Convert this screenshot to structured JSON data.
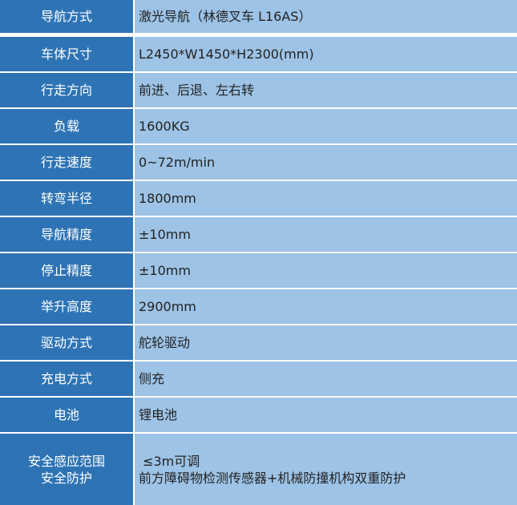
{
  "rows": [
    {
      "label": "导航方式",
      "value": "激光导航（林德叉车 L16AS）"
    },
    {
      "label": "车体尺寸",
      "value": "L2450*W1450*H2300(mm)"
    },
    {
      "label": "行走方向",
      "value": "前进、后退、左右转"
    },
    {
      "label": "负载",
      "value": "1600KG"
    },
    {
      "label": "行走速度",
      "value": "0~72m/min"
    },
    {
      "label": "转弯半径",
      "value": "1800mm"
    },
    {
      "label": "导航精度",
      "value": "±10mm"
    },
    {
      "label": "停止精度",
      "value": "±10mm"
    },
    {
      "label": "举升高度",
      "value": "2900mm"
    },
    {
      "label": "驱动方式",
      "value": "舵轮驱动"
    },
    {
      "label": "充电方式",
      "value": "侧充"
    },
    {
      "label": "电池",
      "value": "锂电池"
    }
  ],
  "last": {
    "label1": "安全感应范围",
    "label2": "安全防护",
    "value1": " ≤3m可调",
    "value2": "前方障碍物检测传感器+机械防撞机构双重防护"
  },
  "colors": {
    "label_bg": "#2E74B5",
    "value_bg": "#9DC3E6"
  }
}
